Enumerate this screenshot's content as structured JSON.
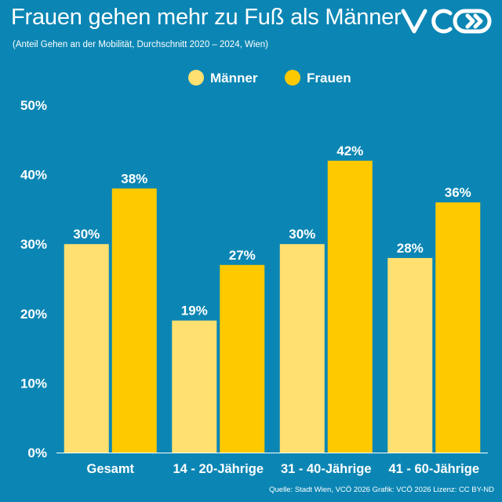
{
  "header": {
    "title": "Frauen gehen mehr zu Fuß als Männer",
    "subtitle": "(Anteil Gehen an der Mobilität, Durchschnitt 2020 – 2024, Wien)"
  },
  "logo": {
    "name": "vco-logo"
  },
  "footer": {
    "source": "Quelle: Stadt Wien, VCÖ 2026 Grafik: VCÖ 2026 Lizenz: CC BY-ND"
  },
  "colors": {
    "background": "#0b86b4",
    "maenner": "#ffe070",
    "frauen": "#ffc900",
    "text": "#ffffff"
  },
  "chart_data": {
    "type": "bar",
    "categories": [
      "Gesamt",
      "14 - 20-Jährige",
      "31 - 40-Jährige",
      "41 - 60-Jährige"
    ],
    "series": [
      {
        "name": "Männer",
        "values": [
          30,
          19,
          30,
          28
        ]
      },
      {
        "name": "Frauen",
        "values": [
          38,
          27,
          42,
          36
        ]
      }
    ],
    "value_labels": {
      "Männer": [
        "30%",
        "19%",
        "30%",
        "28%"
      ],
      "Frauen": [
        "38%",
        "27%",
        "42%",
        "36%"
      ]
    },
    "ylim": [
      0,
      50
    ],
    "yticks": [
      0,
      10,
      20,
      30,
      40,
      50
    ],
    "ytick_labels": [
      "0%",
      "10%",
      "20%",
      "30%",
      "40%",
      "50%"
    ],
    "grid": false,
    "legend_position": "top-center"
  }
}
